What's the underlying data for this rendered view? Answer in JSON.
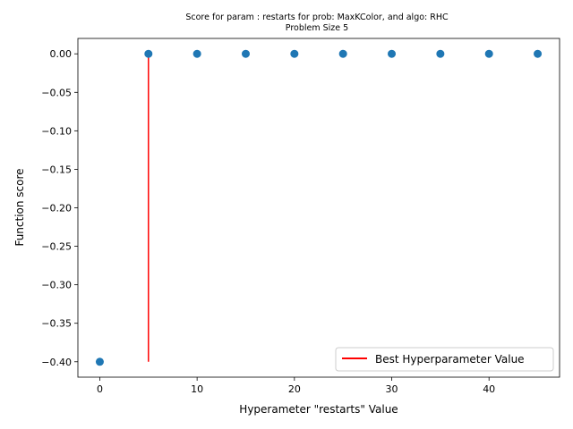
{
  "chart_data": {
    "type": "scatter",
    "title_line1": "Score for param : restarts for prob: MaxKColor, and algo: RHC",
    "title_line2": "Problem Size 5",
    "xlabel": "Hyperameter \"restarts\" Value",
    "ylabel": "Function score",
    "xlim": [
      -2.25,
      47.25
    ],
    "ylim": [
      -0.42,
      0.02
    ],
    "x_ticks": [
      0,
      10,
      20,
      30,
      40
    ],
    "y_ticks": [
      0.0,
      -0.05,
      -0.1,
      -0.15,
      -0.2,
      -0.25,
      -0.3,
      -0.35,
      -0.4
    ],
    "y_tick_labels": [
      "0.00",
      "−0.05",
      "−0.10",
      "−0.15",
      "−0.20",
      "−0.25",
      "−0.30",
      "−0.35",
      "−0.40"
    ],
    "x": [
      0,
      5,
      10,
      15,
      20,
      25,
      30,
      35,
      40,
      45
    ],
    "y": [
      -0.4,
      0,
      0,
      0,
      0,
      0,
      0,
      0,
      0,
      0
    ],
    "best_line": {
      "x": 5,
      "y_from": -0.4,
      "y_to": 0.0,
      "color": "#ff0000"
    },
    "point_color": "#1f77b4",
    "legend": {
      "label": "Best Hyperparameter Value",
      "position": "lower-right"
    }
  }
}
